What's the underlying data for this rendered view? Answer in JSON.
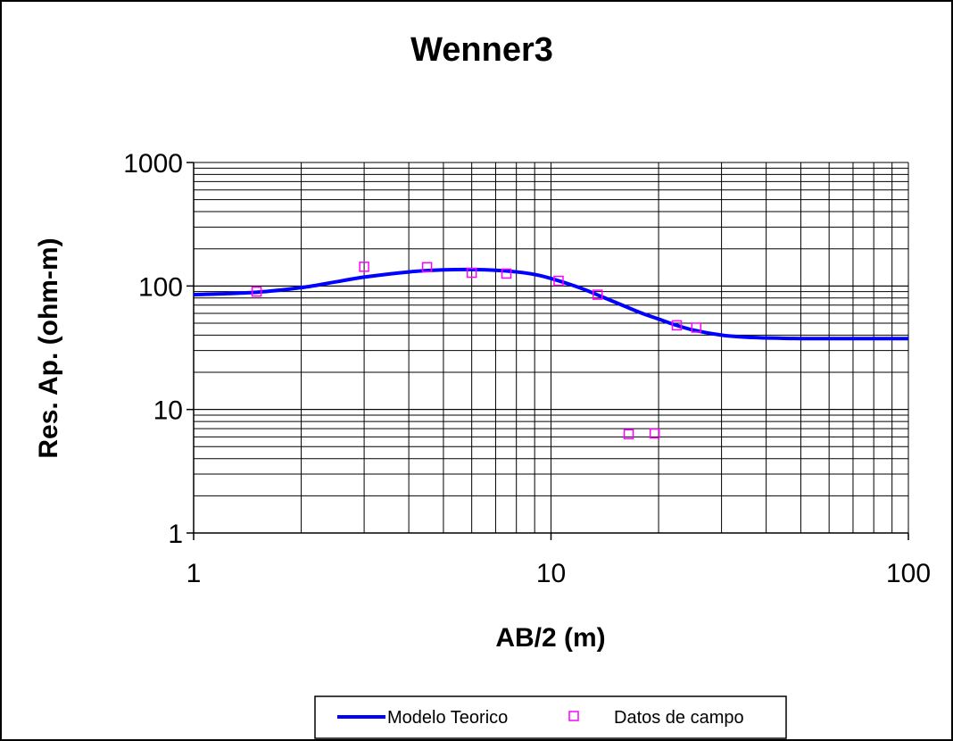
{
  "chart_data": {
    "type": "line",
    "title": "Wenner3",
    "xlabel": "AB/2 (m)",
    "ylabel": "Res. Ap. (ohm-m)",
    "x_scale": "log",
    "y_scale": "log",
    "xlim": [
      1,
      100
    ],
    "ylim": [
      1,
      1000
    ],
    "grid": true,
    "legend_position": "bottom",
    "x_tick_labels": [
      "1",
      "10",
      "100"
    ],
    "y_tick_labels": [
      "1",
      "10",
      "100",
      "1000"
    ],
    "series": [
      {
        "name": "Modelo Teorico",
        "kind": "line",
        "color": "#0000ff",
        "x": [
          1,
          1.5,
          2,
          2.5,
          3,
          4,
          5,
          6,
          7,
          8,
          9,
          10,
          12,
          14,
          16,
          18,
          20,
          22,
          25,
          30,
          35,
          40,
          50,
          70,
          100
        ],
        "y": [
          85,
          89,
          97,
          108,
          118,
          130,
          135,
          136,
          134,
          130,
          124,
          115,
          97,
          81,
          69,
          60,
          54,
          49,
          44,
          40,
          38.5,
          38,
          37.5,
          37.5,
          37.5
        ]
      },
      {
        "name": "Datos de campo",
        "kind": "scatter",
        "color": "#ff00ff",
        "x": [
          1.5,
          3,
          4.5,
          6,
          7.5,
          10.5,
          13.5,
          16.5,
          19.5,
          22.5,
          25.5
        ],
        "y": [
          90,
          143,
          142,
          128,
          126,
          110,
          85,
          6.3,
          6.4,
          48,
          46
        ]
      }
    ]
  }
}
